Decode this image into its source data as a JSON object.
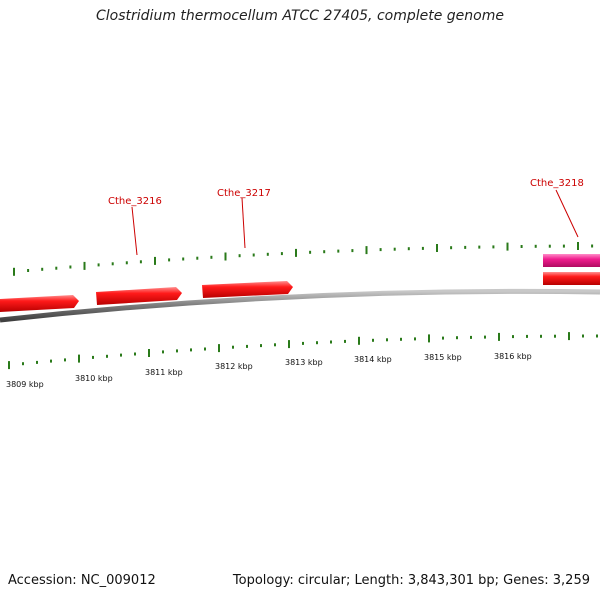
{
  "header": {
    "title": "Clostridium thermocellum ATCC 27405, complete genome"
  },
  "footer": {
    "accession": "Accession: NC_009012",
    "summary": "Topology: circular; Length: 3,843,301 bp; Genes: 3,259"
  },
  "colors": {
    "gene_forward": "#ee1111",
    "gene_other": "#ee1a8c",
    "backbone": "#808080",
    "tick": "#2a7a1a",
    "gene_label": "#cc0000"
  },
  "genes": [
    {
      "id": "gene-3215",
      "label": ""
    },
    {
      "id": "gene-3216",
      "label": "Cthe_3216"
    },
    {
      "id": "gene-3217",
      "label": "Cthe_3217"
    },
    {
      "id": "gene-3218",
      "label": "Cthe_3218"
    },
    {
      "id": "gene-3218-rna",
      "label": ""
    }
  ],
  "scale": {
    "labels": [
      "3809 kbp",
      "3810 kbp",
      "3811 kbp",
      "3812 kbp",
      "3813 kbp",
      "3814 kbp",
      "3815 kbp",
      "3816 kbp"
    ]
  }
}
